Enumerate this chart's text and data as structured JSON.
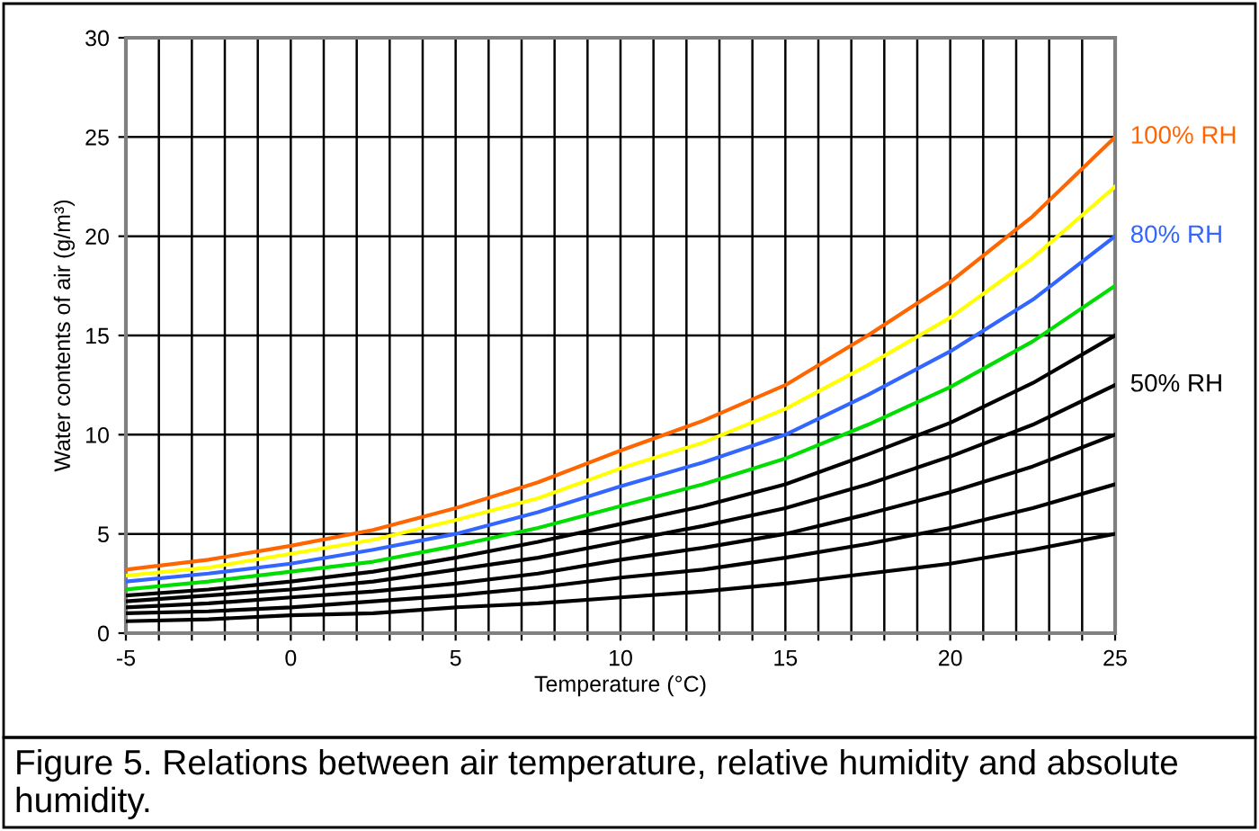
{
  "chart_data": {
    "type": "line",
    "xlabel": "Temperature (°C)",
    "ylabel": "Water contents of air (g/m³)",
    "x": [
      -5,
      -2.5,
      0,
      2.5,
      5,
      7.5,
      10,
      12.5,
      15,
      17.5,
      20,
      22.5,
      25
    ],
    "series": [
      {
        "name": "100% RH",
        "color": "#ff6600",
        "values": [
          3.2,
          3.7,
          4.4,
          5.2,
          6.3,
          7.6,
          9.2,
          10.7,
          12.5,
          15.0,
          17.7,
          21.0,
          25.0
        ]
      },
      {
        "color": "#ffff00",
        "values": [
          2.9,
          3.3,
          4.0,
          4.7,
          5.7,
          6.8,
          8.3,
          9.6,
          11.3,
          13.5,
          15.9,
          18.9,
          22.5
        ]
      },
      {
        "name": "80% RH",
        "color": "#3366ff",
        "values": [
          2.6,
          3.0,
          3.5,
          4.2,
          5.0,
          6.1,
          7.4,
          8.6,
          10.0,
          12.0,
          14.2,
          16.8,
          20.0
        ]
      },
      {
        "color": "#00dd00",
        "values": [
          2.2,
          2.6,
          3.1,
          3.6,
          4.4,
          5.3,
          6.4,
          7.5,
          8.8,
          10.5,
          12.4,
          14.7,
          17.5
        ]
      },
      {
        "color": "#000000",
        "values": [
          1.9,
          2.2,
          2.6,
          3.1,
          3.8,
          4.6,
          5.5,
          6.4,
          7.5,
          9.0,
          10.6,
          12.6,
          15.0
        ]
      },
      {
        "name": "50% RH",
        "color": "#000000",
        "values": [
          1.6,
          1.9,
          2.2,
          2.6,
          3.2,
          3.8,
          4.6,
          5.4,
          6.3,
          7.5,
          8.9,
          10.5,
          12.5
        ]
      },
      {
        "color": "#000000",
        "values": [
          1.3,
          1.5,
          1.8,
          2.1,
          2.5,
          3.0,
          3.7,
          4.3,
          5.0,
          6.0,
          7.1,
          8.4,
          10.0
        ]
      },
      {
        "color": "#000000",
        "values": [
          1.0,
          1.1,
          1.3,
          1.6,
          1.9,
          2.3,
          2.8,
          3.2,
          3.8,
          4.5,
          5.3,
          6.3,
          7.5
        ]
      },
      {
        "color": "#000000",
        "values": [
          0.6,
          0.7,
          0.9,
          1.0,
          1.3,
          1.5,
          1.8,
          2.1,
          2.5,
          3.0,
          3.5,
          4.2,
          5.0
        ]
      }
    ],
    "xlim": [
      -5,
      25
    ],
    "ylim": [
      0,
      30
    ],
    "xticks": [
      -5,
      {
        "value": -4,
        "label": null
      },
      {
        "value": -3,
        "label": null
      },
      {
        "value": -2,
        "label": null
      },
      {
        "value": -1,
        "label": null
      },
      0,
      {
        "value": 1,
        "label": null
      },
      {
        "value": 2,
        "label": null
      },
      {
        "value": 3,
        "label": null
      },
      {
        "value": 4,
        "label": null
      },
      5,
      {
        "value": 6,
        "label": null
      },
      {
        "value": 7,
        "label": null
      },
      {
        "value": 8,
        "label": null
      },
      {
        "value": 9,
        "label": null
      },
      10,
      {
        "value": 11,
        "label": null
      },
      {
        "value": 12,
        "label": null
      },
      {
        "value": 13,
        "label": null
      },
      {
        "value": 14,
        "label": null
      },
      15,
      {
        "value": 16,
        "label": null
      },
      {
        "value": 17,
        "label": null
      },
      {
        "value": 18,
        "label": null
      },
      {
        "value": 19,
        "label": null
      },
      20,
      {
        "value": 21,
        "label": null
      },
      {
        "value": 22,
        "label": null
      },
      {
        "value": 23,
        "label": null
      },
      {
        "value": 24,
        "label": null
      },
      25
    ],
    "yticks": [
      0,
      5,
      10,
      15,
      20,
      25,
      30
    ],
    "grid": true,
    "legend": false,
    "marker": "none",
    "line_style": "solid",
    "annotations": [
      "Figure 5. Relations between air temperature, relative humidity and absolute humidity."
    ]
  }
}
